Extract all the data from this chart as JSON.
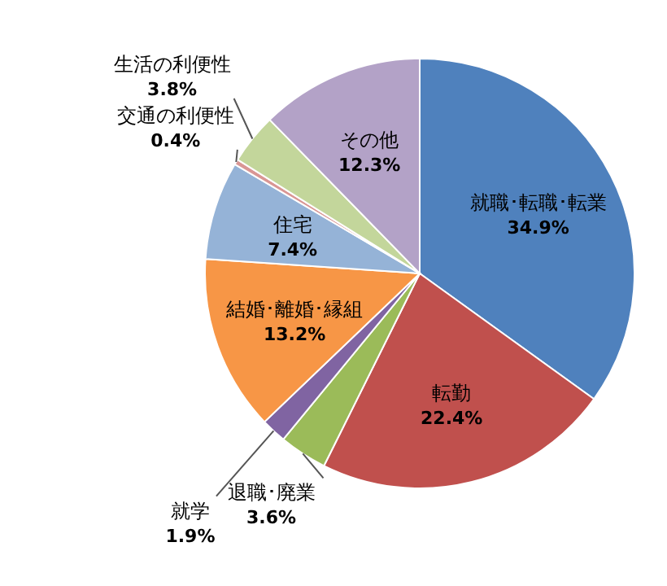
{
  "chart_data": {
    "type": "pie",
    "categories": [
      "就職･転職･転業",
      "転勤",
      "退職･廃業",
      "就学",
      "結婚･離婚･縁組",
      "住宅",
      "交通の利便性",
      "生活の利便性",
      "その他"
    ],
    "values": [
      34.9,
      22.4,
      3.6,
      1.9,
      13.2,
      7.4,
      0.4,
      3.8,
      12.3
    ],
    "value_labels": [
      "34.9%",
      "22.4%",
      "3.6%",
      "1.9%",
      "13.2%",
      "7.4%",
      "0.4%",
      "3.8%",
      "12.3%"
    ],
    "colors": [
      "#4f81bd",
      "#c0504d",
      "#9bbb59",
      "#8064a2",
      "#f79646",
      "#95b3d7",
      "#d99694",
      "#c3d69b",
      "#b3a2c7"
    ]
  }
}
